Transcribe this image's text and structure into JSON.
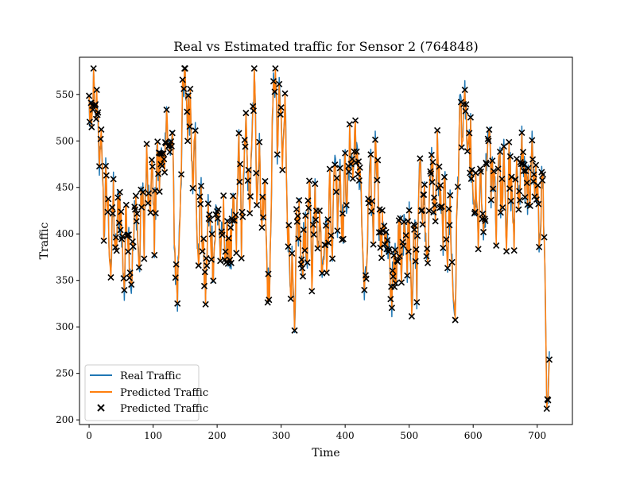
{
  "chart_data": {
    "type": "line",
    "title": "Real vs Estimated traffic for Sensor 2 (764848)",
    "xlabel": "Time",
    "ylabel": "Traffic",
    "xlim": [
      -15,
      755
    ],
    "ylim": [
      195,
      590
    ],
    "xticks": [
      0,
      100,
      200,
      300,
      400,
      500,
      600,
      700
    ],
    "yticks": [
      200,
      250,
      300,
      350,
      400,
      450,
      500,
      550
    ],
    "grid": false,
    "legend_position": "lower-left",
    "legend": [
      "Real Traffic",
      "Predicted Traffic",
      "Predicted Traffic"
    ],
    "series": [
      {
        "name": "Real Traffic",
        "style": "line",
        "color": "#1f77b4"
      },
      {
        "name": "Predicted Traffic",
        "style": "line",
        "color": "#ff7f0e"
      },
      {
        "name": "Predicted Traffic",
        "style": "x-marker",
        "color": "#000000"
      }
    ],
    "n_points": 720,
    "anchors": [
      [
        0,
        540
      ],
      [
        4,
        505
      ],
      [
        7,
        575
      ],
      [
        9,
        520
      ],
      [
        13,
        545
      ],
      [
        17,
        470
      ],
      [
        20,
        505
      ],
      [
        23,
        400
      ],
      [
        26,
        450
      ],
      [
        30,
        420
      ],
      [
        34,
        360
      ],
      [
        38,
        445
      ],
      [
        41,
        365
      ],
      [
        45,
        420
      ],
      [
        48,
        440
      ],
      [
        51,
        400
      ],
      [
        55,
        345
      ],
      [
        58,
        435
      ],
      [
        62,
        390
      ],
      [
        66,
        350
      ],
      [
        70,
        400
      ],
      [
        74,
        440
      ],
      [
        78,
        355
      ],
      [
        82,
        445
      ],
      [
        86,
        400
      ],
      [
        90,
        480
      ],
      [
        94,
        410
      ],
      [
        98,
        470
      ],
      [
        102,
        400
      ],
      [
        106,
        490
      ],
      [
        110,
        460
      ],
      [
        114,
        500
      ],
      [
        118,
        450
      ],
      [
        122,
        535
      ],
      [
        126,
        480
      ],
      [
        130,
        500
      ],
      [
        134,
        380
      ],
      [
        138,
        335
      ],
      [
        142,
        430
      ],
      [
        146,
        540
      ],
      [
        150,
        570
      ],
      [
        154,
        520
      ],
      [
        158,
        550
      ],
      [
        162,
        470
      ],
      [
        166,
        500
      ],
      [
        170,
        355
      ],
      [
        174,
        440
      ],
      [
        178,
        380
      ],
      [
        182,
        335
      ],
      [
        186,
        420
      ],
      [
        190,
        400
      ],
      [
        194,
        370
      ],
      [
        198,
        410
      ],
      [
        202,
        430
      ],
      [
        206,
        365
      ],
      [
        210,
        420
      ],
      [
        214,
        375
      ],
      [
        218,
        400
      ],
      [
        222,
        380
      ],
      [
        226,
        425
      ],
      [
        230,
        390
      ],
      [
        234,
        505
      ],
      [
        238,
        400
      ],
      [
        242,
        460
      ],
      [
        246,
        525
      ],
      [
        250,
        420
      ],
      [
        254,
        480
      ],
      [
        258,
        572
      ],
      [
        262,
        450
      ],
      [
        266,
        500
      ],
      [
        270,
        400
      ],
      [
        274,
        470
      ],
      [
        278,
        355
      ],
      [
        282,
        325
      ],
      [
        286,
        520
      ],
      [
        290,
        578
      ],
      [
        294,
        500
      ],
      [
        298,
        550
      ],
      [
        302,
        470
      ],
      [
        306,
        540
      ],
      [
        310,
        420
      ],
      [
        314,
        360
      ],
      [
        318,
        350
      ],
      [
        321,
        280
      ],
      [
        324,
        400
      ],
      [
        328,
        420
      ],
      [
        332,
        350
      ],
      [
        336,
        410
      ],
      [
        340,
        375
      ],
      [
        344,
        450
      ],
      [
        348,
        345
      ],
      [
        352,
        450
      ],
      [
        356,
        390
      ],
      [
        360,
        420
      ],
      [
        364,
        370
      ],
      [
        368,
        410
      ],
      [
        372,
        370
      ],
      [
        376,
        460
      ],
      [
        380,
        390
      ],
      [
        384,
        490
      ],
      [
        388,
        430
      ],
      [
        392,
        475
      ],
      [
        396,
        400
      ],
      [
        400,
        470
      ],
      [
        404,
        440
      ],
      [
        408,
        510
      ],
      [
        412,
        460
      ],
      [
        416,
        520
      ],
      [
        420,
        450
      ],
      [
        424,
        480
      ],
      [
        428,
        360
      ],
      [
        432,
        330
      ],
      [
        436,
        420
      ],
      [
        440,
        460
      ],
      [
        444,
        400
      ],
      [
        448,
        510
      ],
      [
        452,
        445
      ],
      [
        456,
        380
      ],
      [
        460,
        420
      ],
      [
        464,
        390
      ],
      [
        468,
        370
      ],
      [
        472,
        330
      ],
      [
        476,
        380
      ],
      [
        480,
        335
      ],
      [
        484,
        410
      ],
      [
        488,
        375
      ],
      [
        492,
        420
      ],
      [
        496,
        370
      ],
      [
        500,
        420
      ],
      [
        504,
        335
      ],
      [
        508,
        400
      ],
      [
        512,
        350
      ],
      [
        516,
        480
      ],
      [
        520,
        420
      ],
      [
        524,
        450
      ],
      [
        528,
        365
      ],
      [
        532,
        440
      ],
      [
        536,
        475
      ],
      [
        540,
        415
      ],
      [
        544,
        490
      ],
      [
        548,
        440
      ],
      [
        552,
        400
      ],
      [
        556,
        445
      ],
      [
        560,
        380
      ],
      [
        564,
        430
      ],
      [
        568,
        340
      ],
      [
        572,
        320
      ],
      [
        576,
        460
      ],
      [
        580,
        540
      ],
      [
        584,
        500
      ],
      [
        588,
        550
      ],
      [
        592,
        470
      ],
      [
        596,
        500
      ],
      [
        600,
        420
      ],
      [
        604,
        440
      ],
      [
        608,
        400
      ],
      [
        612,
        460
      ],
      [
        616,
        380
      ],
      [
        620,
        450
      ],
      [
        624,
        520
      ],
      [
        628,
        450
      ],
      [
        632,
        480
      ],
      [
        636,
        410
      ],
      [
        640,
        500
      ],
      [
        644,
        430
      ],
      [
        648,
        470
      ],
      [
        652,
        390
      ],
      [
        656,
        480
      ],
      [
        660,
        440
      ],
      [
        664,
        380
      ],
      [
        668,
        495
      ],
      [
        672,
        430
      ],
      [
        676,
        500
      ],
      [
        680,
        450
      ],
      [
        684,
        470
      ],
      [
        688,
        420
      ],
      [
        692,
        480
      ],
      [
        696,
        430
      ],
      [
        700,
        475
      ],
      [
        704,
        390
      ],
      [
        708,
        470
      ],
      [
        712,
        370
      ],
      [
        715,
        215
      ],
      [
        717,
        225
      ],
      [
        719,
        265
      ]
    ]
  }
}
